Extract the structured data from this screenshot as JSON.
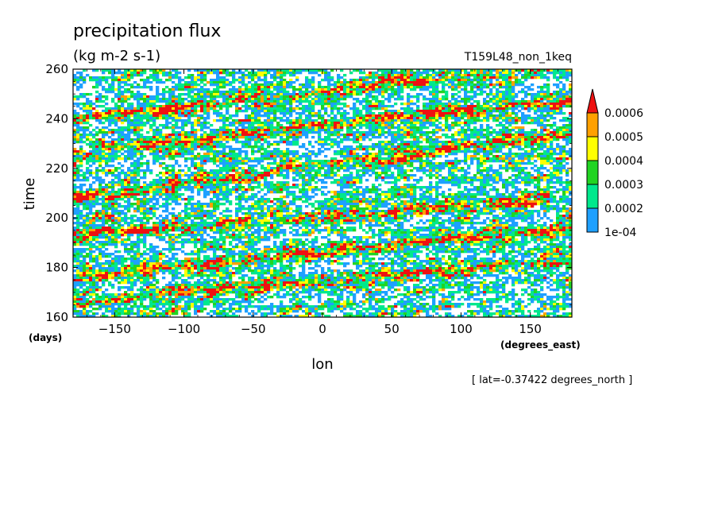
{
  "chart_data": {
    "type": "heatmap",
    "title": "precipitation flux",
    "units": "(kg m-2 s-1)",
    "experiment": "T159L48_non_1keq",
    "xlabel": "lon",
    "xunits": "(degrees_east)",
    "ylabel": "time",
    "yunits": "(days)",
    "slice_note": "[ lat=-0.37422 degrees_north ]",
    "xlim": [
      -180,
      180
    ],
    "ylim": [
      160,
      260
    ],
    "x_ticks": [
      -150,
      -100,
      -50,
      0,
      50,
      100,
      150
    ],
    "y_ticks": [
      160,
      180,
      200,
      220,
      240,
      260
    ],
    "colorbar": {
      "levels": [
        "1e-04",
        "0.0002",
        "0.0003",
        "0.0004",
        "0.0005",
        "0.0006"
      ],
      "colors": [
        "#ffffff",
        "#1ea0ff",
        "#00e88c",
        "#22d422",
        "#ffff00",
        "#ffa000",
        "#ee1111"
      ]
    },
    "propagating_bands": [
      {
        "lon_start": -180,
        "time_start": 166,
        "lon_end": 180,
        "time_end": 183
      },
      {
        "lon_start": -180,
        "time_start": 176,
        "lon_end": 180,
        "time_end": 196
      },
      {
        "lon_start": -180,
        "time_start": 193,
        "lon_end": 180,
        "time_end": 208
      },
      {
        "lon_start": -180,
        "time_start": 208,
        "lon_end": 180,
        "time_end": 234
      },
      {
        "lon_start": -180,
        "time_start": 226,
        "lon_end": 180,
        "time_end": 248
      },
      {
        "lon_start": -180,
        "time_start": 240,
        "lon_end": 180,
        "time_end": 262
      }
    ]
  }
}
